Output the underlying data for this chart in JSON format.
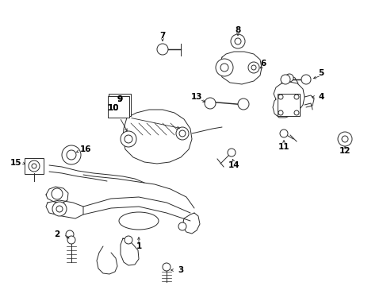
{
  "bg_color": "#ffffff",
  "line_color": "#2a2a2a",
  "text_color": "#000000",
  "fig_width": 4.89,
  "fig_height": 3.6,
  "dpi": 100,
  "lw": 0.7,
  "fs": 7.5
}
